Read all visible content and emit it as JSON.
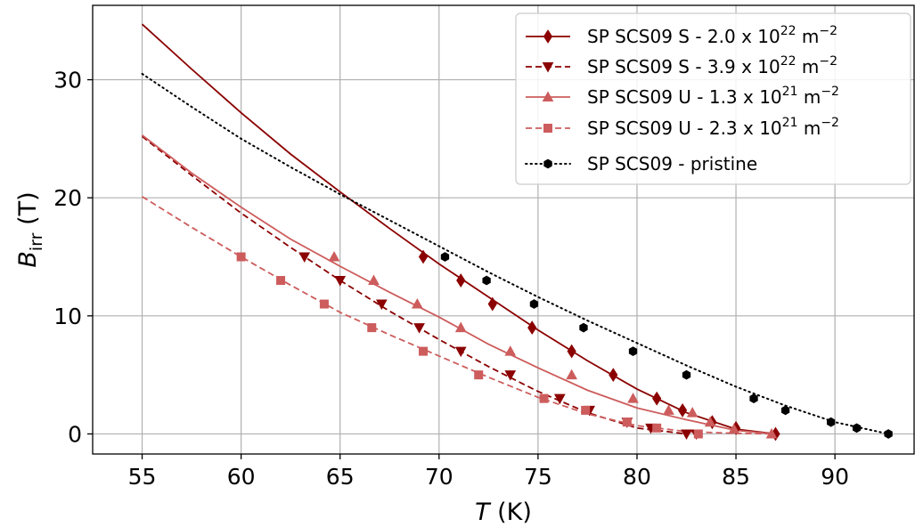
{
  "chart_data": {
    "type": "line",
    "xlabel": "T (K)",
    "ylabel": "B_irr (T)",
    "xlim": [
      52.5,
      94.0
    ],
    "ylim": [
      -1.7,
      36.3
    ],
    "xticks": [
      "55",
      "60",
      "65",
      "70",
      "75",
      "80",
      "85",
      "90"
    ],
    "yticks": [
      "0",
      "10",
      "20",
      "30"
    ],
    "grid": true,
    "legend_position": "top-right",
    "series": [
      {
        "name": "SP SCS09 S - 2.0 x 10^22 m^-2",
        "legend": {
          "base": "SP SCS09 S - 2.0 x 10",
          "exp": "22",
          "unit": " m",
          "unit_exp": "−2"
        },
        "color": "#8b0000",
        "linestyle": "solid",
        "marker": "diamond",
        "curve_x": [
          55.0,
          57.5,
          60.0,
          62.5,
          65.0,
          67.5,
          70.0,
          72.5,
          75.0,
          77.5,
          80.0,
          82.5,
          85.0,
          87.0
        ],
        "curve_y": [
          34.7,
          30.9,
          27.2,
          23.7,
          20.5,
          17.4,
          14.4,
          11.6,
          8.8,
          6.2,
          3.8,
          1.8,
          0.4,
          0.0
        ],
        "x": [
          69.2,
          71.1,
          72.7,
          74.7,
          76.7,
          78.8,
          81.0,
          82.3,
          83.8,
          85.0,
          87.0
        ],
        "y": [
          15.0,
          13.0,
          11.0,
          9.0,
          7.0,
          5.0,
          3.0,
          2.0,
          1.0,
          0.5,
          0.0
        ]
      },
      {
        "name": "SP SCS09 S - 3.9 x 10^22 m^-2",
        "legend": {
          "base": "SP SCS09 S - 3.9 x 10",
          "exp": "22",
          "unit": " m",
          "unit_exp": "−2"
        },
        "color": "#8b0000",
        "linestyle": "dashed",
        "marker": "triangle-down",
        "curve_x": [
          55.0,
          57.5,
          60.0,
          62.5,
          65.0,
          67.5,
          70.0,
          72.5,
          75.0,
          77.5,
          80.0,
          82.5
        ],
        "curve_y": [
          25.2,
          21.9,
          18.7,
          15.8,
          13.0,
          10.4,
          8.0,
          5.7,
          3.6,
          1.8,
          0.5,
          0.0
        ],
        "x": [
          63.2,
          65.0,
          67.1,
          69.0,
          71.1,
          73.6,
          76.1,
          77.6,
          79.5,
          80.7,
          82.5,
          83.0
        ],
        "y": [
          15.0,
          13.0,
          11.0,
          9.0,
          7.0,
          5.0,
          3.0,
          2.0,
          1.0,
          0.5,
          0.0,
          0.0
        ]
      },
      {
        "name": "SP SCS09 U - 1.3 x 10^21 m^-2",
        "legend": {
          "base": "SP SCS09 U - 1.3 x 10",
          "exp": "21",
          "unit": " m",
          "unit_exp": "−2"
        },
        "color": "#cd5c5c",
        "linestyle": "solid",
        "marker": "triangle-up",
        "curve_x": [
          55.0,
          57.5,
          60.0,
          62.5,
          65.0,
          67.5,
          70.0,
          72.5,
          75.0,
          77.5,
          80.0,
          82.5,
          85.0,
          87.0
        ],
        "curve_y": [
          25.3,
          22.1,
          19.2,
          16.5,
          14.2,
          12.0,
          9.9,
          7.6,
          5.6,
          3.7,
          2.2,
          1.2,
          0.3,
          0.0
        ],
        "x": [
          64.7,
          66.7,
          68.9,
          71.1,
          73.6,
          76.7,
          79.8,
          81.6,
          82.8,
          83.7,
          84.9,
          86.8
        ],
        "y": [
          15.0,
          13.0,
          11.0,
          9.0,
          7.0,
          5.0,
          3.0,
          2.0,
          1.8,
          1.0,
          0.4,
          0.0
        ]
      },
      {
        "name": "SP SCS09 U - 2.3 x 10^21 m^-2",
        "legend": {
          "base": "SP SCS09 U - 2.3 x 10",
          "exp": "21",
          "unit": " m",
          "unit_exp": "−2"
        },
        "color": "#cd5c5c",
        "linestyle": "dashed",
        "marker": "square",
        "curve_x": [
          55.0,
          57.5,
          60.0,
          62.5,
          65.0,
          67.5,
          70.0,
          72.5,
          75.0,
          77.5,
          80.0,
          82.5,
          85.0,
          87.0
        ],
        "curve_y": [
          20.1,
          17.5,
          15.0,
          12.6,
          10.3,
          8.4,
          6.6,
          4.8,
          3.1,
          1.7,
          0.7,
          0.2,
          0.05,
          0.0
        ],
        "x": [
          60.0,
          62.0,
          64.2,
          66.6,
          69.2,
          72.0,
          75.3,
          77.4,
          79.5,
          81.0,
          83.1
        ],
        "y": [
          15.0,
          13.0,
          11.0,
          9.0,
          7.0,
          5.0,
          3.0,
          2.0,
          1.0,
          0.5,
          0.0
        ]
      },
      {
        "name": "SP SCS09 - pristine",
        "legend": {
          "base": "SP SCS09 - pristine",
          "exp": "",
          "unit": "",
          "unit_exp": ""
        },
        "color": "#000000",
        "linestyle": "dotted",
        "marker": "hexagon",
        "curve_x": [
          55.0,
          57.5,
          60.0,
          62.5,
          65.0,
          67.5,
          70.0,
          72.5,
          75.0,
          77.5,
          80.0,
          82.5,
          85.0,
          87.5,
          90.0,
          92.7
        ],
        "curve_y": [
          30.5,
          27.7,
          25.0,
          22.6,
          20.3,
          18.1,
          15.9,
          13.7,
          11.6,
          9.6,
          7.7,
          5.8,
          4.0,
          2.4,
          1.0,
          0.0
        ],
        "x": [
          70.3,
          72.4,
          74.8,
          77.3,
          79.8,
          82.5,
          85.9,
          87.5,
          89.8,
          91.1,
          92.7
        ],
        "y": [
          15.0,
          13.0,
          11.0,
          9.0,
          7.0,
          5.0,
          3.0,
          2.0,
          1.0,
          0.5,
          0.0
        ]
      }
    ]
  }
}
